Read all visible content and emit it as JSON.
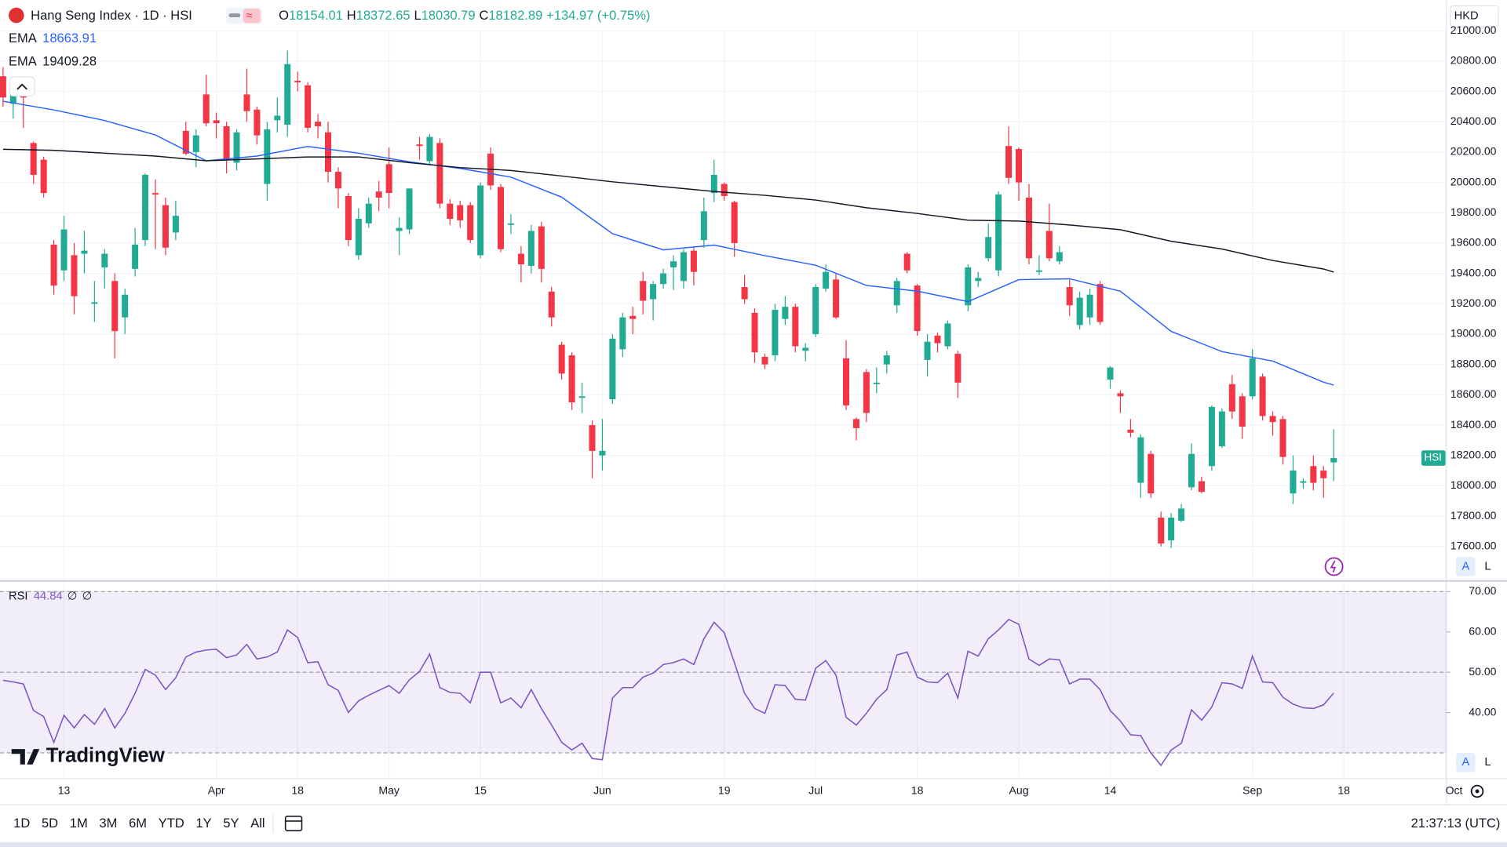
{
  "header": {
    "symbol": "Hang Seng Index · 1D · HSI",
    "ohlc": [
      {
        "label": "O",
        "value": "18154.01"
      },
      {
        "label": "H",
        "value": "18372.65"
      },
      {
        "label": "L",
        "value": "18030.79"
      },
      {
        "label": "C",
        "value": "18182.89"
      }
    ],
    "change": "+134.97 (+0.75%)",
    "currency": "HKD"
  },
  "toolbar": {
    "ranges": [
      "1D",
      "5D",
      "1M",
      "3M",
      "6M",
      "YTD",
      "1Y",
      "5Y",
      "All"
    ],
    "clock": "21:37:13 (UTC)",
    "logo": "TradingView",
    "scale_buttons": [
      "A",
      "L"
    ]
  },
  "chart_data": [
    {
      "type": "candlestick",
      "up_color": "#22ab94",
      "down_color": "#f23645",
      "last_label": "HSI",
      "grid": true,
      "xlim": [
        -0.3,
        142.1
      ],
      "ylim": [
        17385,
        21000
      ],
      "yticks": [
        {
          "value": 17600,
          "label": "17600.00"
        },
        {
          "value": 17800,
          "label": "17800.00"
        },
        {
          "value": 18000,
          "label": "18000.00"
        },
        {
          "value": 18200,
          "label": "18200.00"
        },
        {
          "value": 18400,
          "label": "18400.00"
        },
        {
          "value": 18600,
          "label": "18600.00"
        },
        {
          "value": 18800,
          "label": "18800.00"
        },
        {
          "value": 19000,
          "label": "19000.00"
        },
        {
          "value": 19200,
          "label": "19200.00"
        },
        {
          "value": 19400,
          "label": "19400.00"
        },
        {
          "value": 19600,
          "label": "19600.00"
        },
        {
          "value": 19800,
          "label": "19800.00"
        },
        {
          "value": 20000,
          "label": "20000.00"
        },
        {
          "value": 20200,
          "label": "20200.00"
        },
        {
          "value": 20400,
          "label": "20400.00"
        },
        {
          "value": 20600,
          "label": "20600.00"
        },
        {
          "value": 20800,
          "label": "20800.00"
        },
        {
          "value": 21000,
          "label": "21000.00"
        }
      ],
      "xticks": [
        {
          "value": 6,
          "label": "13"
        },
        {
          "value": 21,
          "label": "Apr"
        },
        {
          "value": 29,
          "label": "18"
        },
        {
          "value": 38,
          "label": "May"
        },
        {
          "value": 47,
          "label": "15"
        },
        {
          "value": 59,
          "label": "Jun"
        },
        {
          "value": 71,
          "label": "19"
        },
        {
          "value": 80,
          "label": "Jul"
        },
        {
          "value": 90,
          "label": "18"
        },
        {
          "value": 100,
          "label": "Aug"
        },
        {
          "value": 109,
          "label": "14"
        },
        {
          "value": 123,
          "label": "Sep"
        },
        {
          "value": 132,
          "label": "18"
        },
        {
          "value": 142,
          "label": "Oct"
        }
      ],
      "ohlc": [
        [
          20700,
          20760,
          20500,
          20560
        ],
        [
          20520,
          20680,
          20420,
          20640
        ],
        [
          20640,
          20700,
          20360,
          20560
        ],
        [
          20260,
          20270,
          19990,
          20050
        ],
        [
          20150,
          20170,
          19900,
          19930
        ],
        [
          19590,
          19620,
          19260,
          19320
        ],
        [
          19420,
          19780,
          19350,
          19690
        ],
        [
          19520,
          19600,
          19130,
          19250
        ],
        [
          19530,
          19680,
          19400,
          19550
        ],
        [
          19200,
          19350,
          19080,
          19210
        ],
        [
          19440,
          19560,
          19300,
          19530
        ],
        [
          19350,
          19400,
          18840,
          19020
        ],
        [
          19110,
          19300,
          19000,
          19260
        ],
        [
          19430,
          19700,
          19380,
          19590
        ],
        [
          19620,
          20060,
          19580,
          20050
        ],
        [
          19930,
          20020,
          19560,
          19920
        ],
        [
          19850,
          19900,
          19520,
          19570
        ],
        [
          19670,
          19880,
          19620,
          19780
        ],
        [
          20340,
          20400,
          20180,
          20190
        ],
        [
          20200,
          20350,
          20100,
          20310
        ],
        [
          20580,
          20710,
          20370,
          20390
        ],
        [
          20410,
          20460,
          20290,
          20390
        ],
        [
          20370,
          20400,
          20060,
          20150
        ],
        [
          20130,
          20350,
          20080,
          20330
        ],
        [
          20580,
          20750,
          20400,
          20470
        ],
        [
          20480,
          20500,
          20250,
          20310
        ],
        [
          19990,
          20400,
          19880,
          20350
        ],
        [
          20410,
          20560,
          20330,
          20440
        ],
        [
          20380,
          20870,
          20300,
          20780
        ],
        [
          20670,
          20730,
          20600,
          20660
        ],
        [
          20640,
          20660,
          20330,
          20360
        ],
        [
          20400,
          20450,
          20290,
          20370
        ],
        [
          20330,
          20400,
          20000,
          20070
        ],
        [
          20070,
          20100,
          19830,
          19960
        ],
        [
          19910,
          19930,
          19580,
          19620
        ],
        [
          19520,
          19830,
          19490,
          19760
        ],
        [
          19730,
          19900,
          19700,
          19860
        ],
        [
          19940,
          20010,
          19810,
          19900
        ],
        [
          20120,
          20230,
          19830,
          19930
        ],
        [
          19680,
          19770,
          19520,
          19700
        ],
        [
          19690,
          19960,
          19660,
          19960
        ],
        [
          20250,
          20300,
          20150,
          20240
        ],
        [
          20140,
          20320,
          20120,
          20300
        ],
        [
          20260,
          20290,
          19830,
          19860
        ],
        [
          19860,
          19890,
          19720,
          19760
        ],
        [
          19850,
          19880,
          19700,
          19750
        ],
        [
          19850,
          19870,
          19600,
          19620
        ],
        [
          19520,
          20000,
          19500,
          19980
        ],
        [
          20190,
          20230,
          19950,
          19980
        ],
        [
          19970,
          19990,
          19540,
          19560
        ],
        [
          19720,
          19790,
          19660,
          19730
        ],
        [
          19530,
          19580,
          19340,
          19460
        ],
        [
          19450,
          19720,
          19400,
          19680
        ],
        [
          19710,
          19740,
          19340,
          19430
        ],
        [
          19280,
          19310,
          19050,
          19110
        ],
        [
          18930,
          18950,
          18700,
          18740
        ],
        [
          18860,
          18880,
          18500,
          18550
        ],
        [
          18580,
          18680,
          18480,
          18590
        ],
        [
          18400,
          18430,
          18050,
          18230
        ],
        [
          18200,
          18440,
          18100,
          18230
        ],
        [
          18570,
          19000,
          18540,
          18970
        ],
        [
          18900,
          19140,
          18850,
          19110
        ],
        [
          19120,
          19180,
          19000,
          19100
        ],
        [
          19350,
          19410,
          19130,
          19220
        ],
        [
          19230,
          19350,
          19090,
          19330
        ],
        [
          19330,
          19430,
          19300,
          19400
        ],
        [
          19440,
          19520,
          19290,
          19480
        ],
        [
          19350,
          19560,
          19300,
          19540
        ],
        [
          19550,
          19580,
          19320,
          19410
        ],
        [
          19620,
          19900,
          19570,
          19810
        ],
        [
          19930,
          20150,
          19870,
          20050
        ],
        [
          19990,
          20000,
          19880,
          19910
        ],
        [
          19870,
          19880,
          19510,
          19600
        ],
        [
          19310,
          19390,
          19200,
          19230
        ],
        [
          19140,
          19170,
          18810,
          18880
        ],
        [
          18850,
          18870,
          18770,
          18800
        ],
        [
          18860,
          19200,
          18820,
          19160
        ],
        [
          19100,
          19250,
          19060,
          19180
        ],
        [
          19180,
          19200,
          18880,
          18920
        ],
        [
          18890,
          18940,
          18820,
          18910
        ],
        [
          19000,
          19330,
          18980,
          19310
        ],
        [
          19300,
          19460,
          19280,
          19410
        ],
        [
          19360,
          19400,
          19100,
          19110
        ],
        [
          18840,
          18960,
          18500,
          18530
        ],
        [
          18440,
          18450,
          18300,
          18380
        ],
        [
          18750,
          18770,
          18420,
          18480
        ],
        [
          18670,
          18780,
          18610,
          18680
        ],
        [
          18800,
          18890,
          18740,
          18860
        ],
        [
          19190,
          19370,
          19140,
          19350
        ],
        [
          19530,
          19540,
          19400,
          19420
        ],
        [
          19320,
          19330,
          18990,
          19020
        ],
        [
          18830,
          19000,
          18720,
          18950
        ],
        [
          18990,
          19010,
          18880,
          18940
        ],
        [
          18920,
          19090,
          18900,
          19070
        ],
        [
          18870,
          18890,
          18580,
          18680
        ],
        [
          19190,
          19460,
          19150,
          19440
        ],
        [
          19350,
          19410,
          19310,
          19370
        ],
        [
          19500,
          19730,
          19480,
          19640
        ],
        [
          19420,
          19940,
          19380,
          19920
        ],
        [
          20240,
          20370,
          19990,
          20030
        ],
        [
          20220,
          20230,
          19880,
          20000
        ],
        [
          19900,
          19990,
          19460,
          19500
        ],
        [
          19410,
          19520,
          19390,
          19420
        ],
        [
          19680,
          19860,
          19480,
          19500
        ],
        [
          19480,
          19580,
          19460,
          19540
        ],
        [
          19310,
          19360,
          19120,
          19190
        ],
        [
          19060,
          19280,
          19030,
          19240
        ],
        [
          19110,
          19300,
          19060,
          19260
        ],
        [
          19330,
          19350,
          19060,
          19080
        ],
        [
          18700,
          18790,
          18640,
          18780
        ],
        [
          18610,
          18630,
          18480,
          18590
        ],
        [
          18370,
          18440,
          18320,
          18350
        ],
        [
          18020,
          18340,
          17920,
          18320
        ],
        [
          18210,
          18230,
          17920,
          17950
        ],
        [
          17790,
          17830,
          17600,
          17620
        ],
        [
          17640,
          17820,
          17590,
          17790
        ],
        [
          17770,
          17880,
          17760,
          17850
        ],
        [
          17990,
          18280,
          17970,
          18210
        ],
        [
          18030,
          18060,
          17950,
          17960
        ],
        [
          18130,
          18530,
          18100,
          18520
        ],
        [
          18260,
          18510,
          18250,
          18490
        ],
        [
          18670,
          18730,
          18440,
          18490
        ],
        [
          18590,
          18610,
          18310,
          18390
        ],
        [
          18590,
          18900,
          18570,
          18840
        ],
        [
          18720,
          18740,
          18430,
          18460
        ],
        [
          18460,
          18490,
          18330,
          18420
        ],
        [
          18440,
          18460,
          18140,
          18190
        ],
        [
          17950,
          18200,
          17880,
          18100
        ],
        [
          18020,
          18050,
          17980,
          18030
        ],
        [
          18130,
          18200,
          17970,
          18020
        ],
        [
          18100,
          18130,
          17920,
          18050
        ],
        [
          18154.01,
          18372.65,
          18030.79,
          18182.89
        ]
      ],
      "series": [
        {
          "name": "EMA",
          "value_label": "18663.91",
          "color": "#2962ff",
          "x": [
            0,
            5,
            10,
            15,
            20,
            25,
            30,
            35,
            40,
            45,
            50,
            55,
            60,
            65,
            70,
            75,
            80,
            85,
            90,
            95,
            100,
            105,
            110,
            115,
            120,
            125,
            130,
            131
          ],
          "values": [
            20535,
            20478,
            20408,
            20313,
            20143,
            20174,
            20237,
            20193,
            20136,
            20092,
            20035,
            19903,
            19662,
            19555,
            19587,
            19517,
            19454,
            19321,
            19283,
            19214,
            19359,
            19365,
            19283,
            19018,
            18885,
            18822,
            18683,
            18663.91
          ]
        },
        {
          "name": "EMA",
          "value_label": "19409.28",
          "color": "#131722",
          "x": [
            0,
            5,
            10,
            15,
            20,
            25,
            30,
            35,
            40,
            45,
            50,
            55,
            60,
            65,
            70,
            75,
            80,
            85,
            90,
            95,
            100,
            105,
            110,
            115,
            120,
            125,
            130,
            131
          ],
          "values": [
            20218,
            20212,
            20193,
            20174,
            20143,
            20155,
            20168,
            20168,
            20130,
            20098,
            20079,
            20042,
            20004,
            19972,
            19940,
            19915,
            19884,
            19833,
            19795,
            19751,
            19745,
            19719,
            19688,
            19612,
            19561,
            19485,
            19429,
            19409.28
          ]
        }
      ]
    },
    {
      "type": "line",
      "name": "RSI",
      "value_label": "44.84",
      "extra_labels": [
        "∅",
        "∅"
      ],
      "color": "#7e57c2",
      "band": [
        30,
        70
      ],
      "midline": 50,
      "xlim": [
        -0.3,
        142.1
      ],
      "ylim": [
        23.8,
        72.4
      ],
      "yticks": [
        {
          "value": 40,
          "label": "40.00"
        },
        {
          "value": 50,
          "label": "50.00"
        },
        {
          "value": 60,
          "label": "60.00"
        },
        {
          "value": 70,
          "label": "70.00"
        }
      ],
      "values": [
        48.0,
        47.6,
        47.1,
        40.5,
        39.0,
        32.6,
        39.3,
        36.2,
        39.5,
        37.1,
        41.0,
        36.2,
        39.8,
        44.8,
        50.7,
        49.3,
        45.7,
        48.6,
        53.8,
        55.0,
        55.5,
        55.7,
        53.6,
        54.3,
        56.9,
        53.3,
        53.8,
        55.0,
        60.5,
        58.6,
        52.4,
        52.6,
        46.9,
        45.5,
        40.0,
        42.9,
        44.3,
        45.5,
        46.7,
        44.8,
        48.1,
        50.2,
        54.5,
        46.2,
        45.0,
        44.8,
        42.4,
        50.0,
        50.0,
        42.4,
        43.6,
        41.2,
        45.7,
        41.0,
        36.9,
        32.6,
        30.7,
        32.4,
        28.6,
        28.3,
        43.6,
        46.2,
        46.2,
        48.8,
        49.8,
        51.9,
        52.4,
        53.3,
        51.9,
        58.3,
        62.4,
        59.8,
        52.4,
        44.8,
        41.0,
        39.8,
        46.9,
        46.7,
        43.3,
        43.1,
        51.0,
        52.9,
        49.3,
        38.8,
        36.9,
        39.8,
        43.3,
        45.7,
        54.3,
        55.0,
        48.8,
        47.6,
        47.4,
        49.8,
        43.6,
        55.2,
        54.0,
        58.3,
        60.5,
        63.1,
        61.9,
        53.3,
        51.7,
        53.3,
        53.1,
        47.1,
        48.3,
        48.3,
        45.7,
        40.5,
        37.9,
        34.5,
        34.3,
        30.0,
        26.9,
        30.7,
        32.4,
        40.7,
        38.1,
        41.4,
        47.4,
        47.1,
        46.0,
        54.0,
        47.6,
        47.4,
        43.8,
        42.1,
        41.2,
        41.0,
        41.9,
        44.84
      ]
    }
  ]
}
